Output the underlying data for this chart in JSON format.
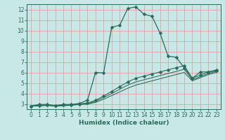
{
  "xlabel": "Humidex (Indice chaleur)",
  "ylabel": "",
  "bg_color": "#c8e8e8",
  "grid_color": "#e8a0a0",
  "line_color": "#2a6b5a",
  "xlim": [
    -0.5,
    23.5
  ],
  "ylim": [
    2.5,
    12.5
  ],
  "yticks": [
    3,
    4,
    5,
    6,
    7,
    8,
    9,
    10,
    11,
    12
  ],
  "xticks": [
    0,
    1,
    2,
    3,
    4,
    5,
    6,
    7,
    8,
    9,
    10,
    11,
    12,
    13,
    14,
    15,
    16,
    17,
    18,
    19,
    20,
    21,
    22,
    23
  ],
  "line1_x": [
    0,
    1,
    2,
    3,
    4,
    5,
    6,
    7,
    8,
    9,
    10,
    11,
    12,
    13,
    14,
    15,
    16,
    17,
    18,
    19,
    20,
    21,
    22,
    23
  ],
  "line1_y": [
    2.8,
    2.95,
    2.95,
    2.85,
    2.95,
    2.95,
    3.05,
    3.35,
    6.0,
    5.95,
    10.3,
    10.5,
    12.1,
    12.25,
    11.55,
    11.35,
    9.75,
    7.55,
    7.45,
    6.45,
    5.45,
    6.05,
    6.05,
    6.15
  ],
  "line2_x": [
    0,
    1,
    2,
    3,
    4,
    5,
    6,
    7,
    8,
    9,
    10,
    11,
    12,
    13,
    14,
    15,
    16,
    17,
    18,
    19,
    20,
    21,
    22,
    23
  ],
  "line2_y": [
    2.8,
    2.85,
    2.9,
    2.82,
    2.88,
    2.92,
    3.0,
    3.08,
    3.35,
    3.75,
    4.2,
    4.65,
    5.1,
    5.45,
    5.65,
    5.85,
    6.05,
    6.25,
    6.45,
    6.65,
    5.45,
    5.75,
    6.05,
    6.25
  ],
  "line3_x": [
    0,
    1,
    2,
    3,
    4,
    5,
    6,
    7,
    8,
    9,
    10,
    11,
    12,
    13,
    14,
    15,
    16,
    17,
    18,
    19,
    20,
    21,
    22,
    23
  ],
  "line3_y": [
    2.8,
    2.85,
    2.88,
    2.82,
    2.86,
    2.9,
    2.98,
    3.02,
    3.25,
    3.6,
    4.0,
    4.4,
    4.8,
    5.1,
    5.3,
    5.5,
    5.7,
    5.9,
    6.1,
    6.3,
    5.3,
    5.6,
    5.9,
    6.1
  ],
  "line4_x": [
    0,
    1,
    2,
    3,
    4,
    5,
    6,
    7,
    8,
    9,
    10,
    11,
    12,
    13,
    14,
    15,
    16,
    17,
    18,
    19,
    20,
    21,
    22,
    23
  ],
  "line4_y": [
    2.8,
    2.82,
    2.85,
    2.8,
    2.83,
    2.87,
    2.95,
    2.98,
    3.15,
    3.45,
    3.8,
    4.15,
    4.5,
    4.8,
    5.0,
    5.2,
    5.4,
    5.6,
    5.8,
    6.0,
    5.2,
    5.5,
    5.8,
    6.0
  ]
}
